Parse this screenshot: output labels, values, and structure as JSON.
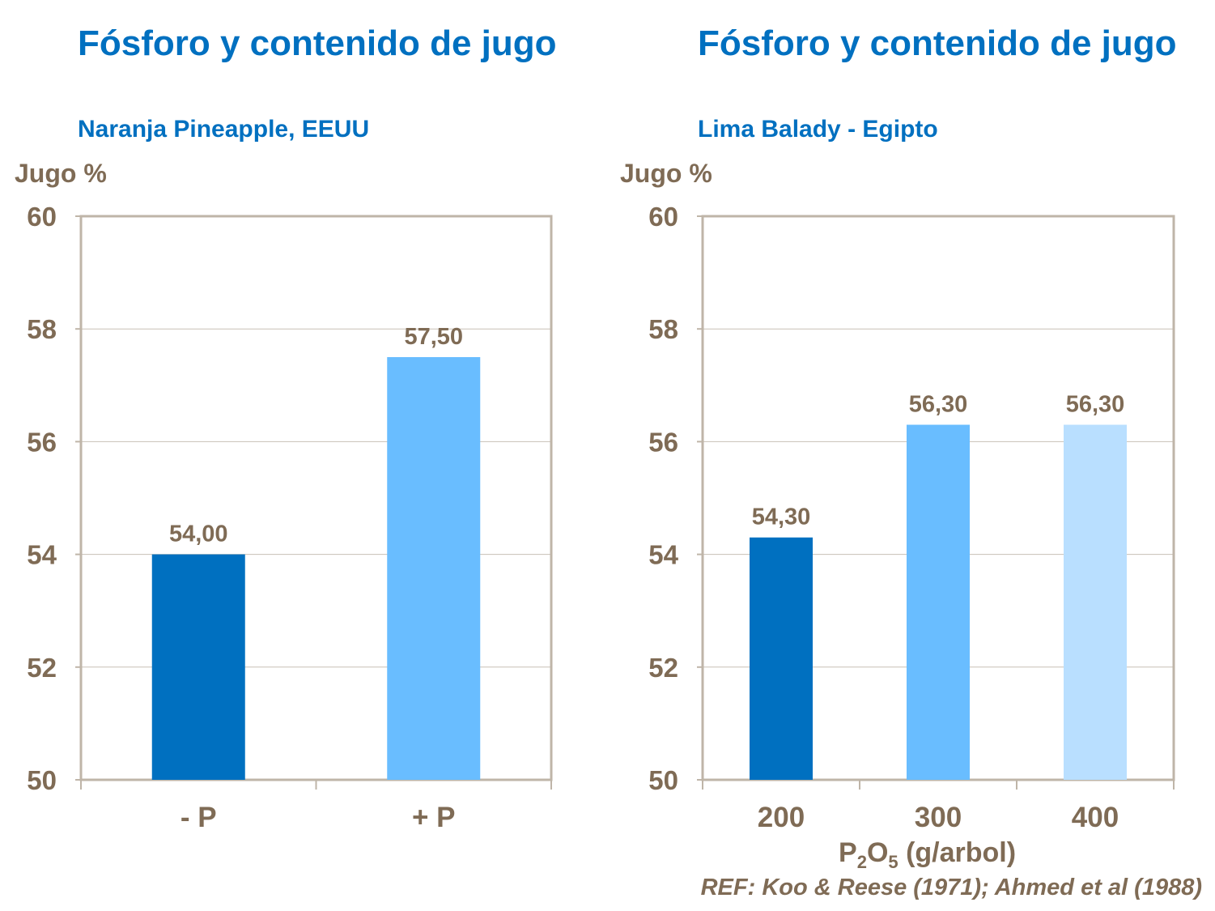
{
  "colors": {
    "text": "#7F6B55",
    "title": "#0070C0",
    "frame": "#BFB5A8",
    "grid": "#C8C0B6"
  },
  "chart_data": [
    {
      "type": "bar",
      "title": "Fósforo y contenido de jugo",
      "subtitle": "Naranja Pineapple, EEUU",
      "ylabel": "Jugo %",
      "xlabel": "",
      "ylim": [
        50,
        60
      ],
      "yticks": [
        50,
        52,
        54,
        56,
        58,
        60
      ],
      "grid": true,
      "categories": [
        "- P",
        "+ P"
      ],
      "values": [
        54.0,
        57.5
      ],
      "data_labels": [
        "54,00",
        "57,50"
      ],
      "bar_colors": [
        "#0070C0",
        "#69BDFF"
      ]
    },
    {
      "type": "bar",
      "title": "Fósforo y contenido de jugo",
      "subtitle": "Lima Balady - Egipto",
      "ylabel": "Jugo %",
      "xlabel": "P2O5 (g/arbol)",
      "ylim": [
        50,
        60
      ],
      "yticks": [
        50,
        52,
        54,
        56,
        58,
        60
      ],
      "grid": true,
      "categories": [
        "200",
        "300",
        "400"
      ],
      "values": [
        54.3,
        56.3,
        56.3
      ],
      "data_labels": [
        "54,30",
        "56,30",
        "56,30"
      ],
      "bar_colors": [
        "#0070C0",
        "#69BDFF",
        "#B9DFFF"
      ]
    }
  ],
  "xtitle": {
    "p": "P",
    "s1": "2",
    "o": "O",
    "s2": "5",
    "rest": " (g/arbol)"
  },
  "reference": "REF: Koo & Reese (1971); Ahmed et al (1988)"
}
